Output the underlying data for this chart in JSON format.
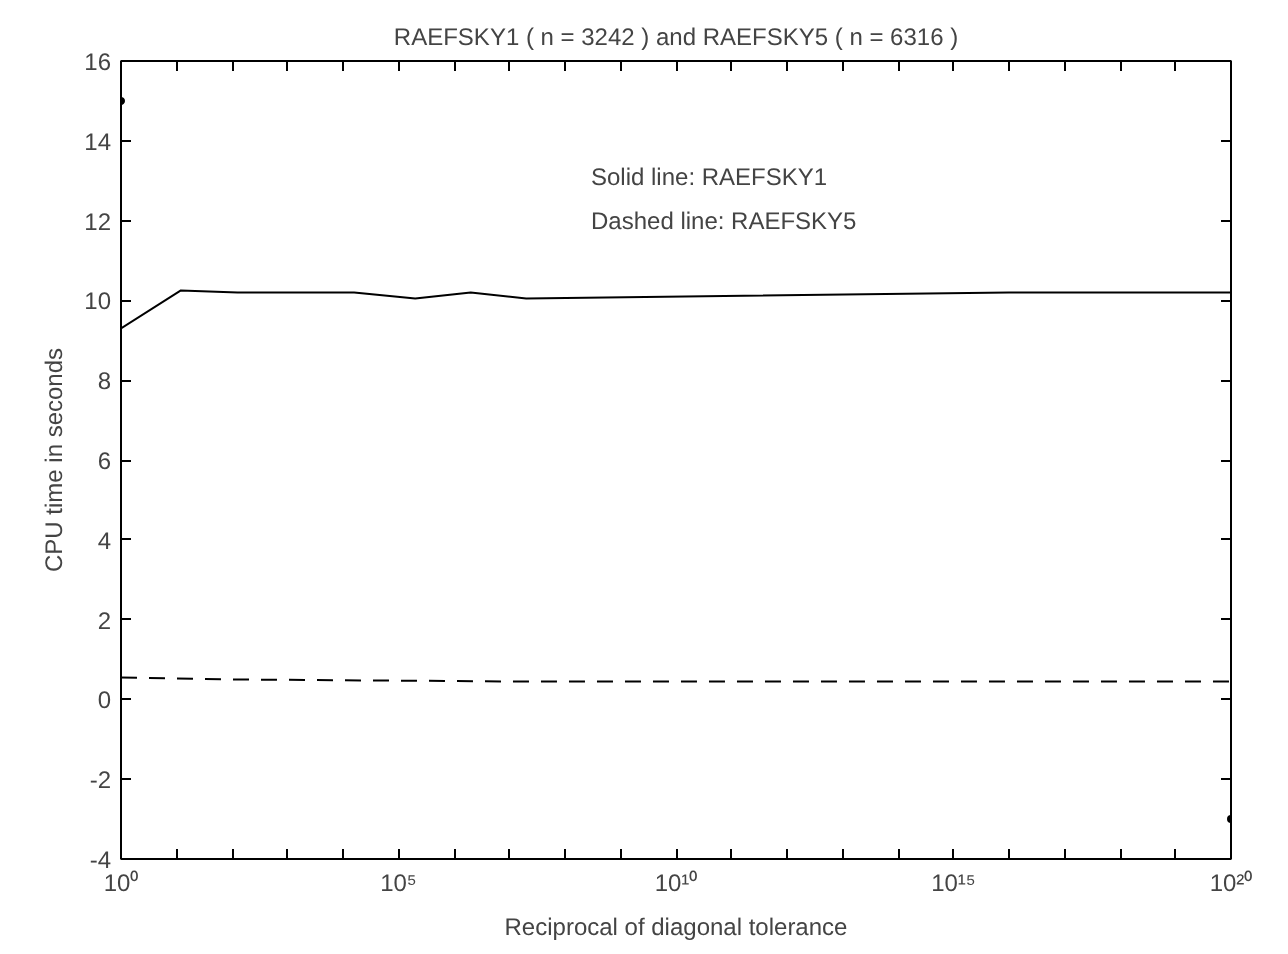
{
  "chart_data": {
    "type": "line",
    "title": "RAEFSKY1 ( n = 3242 ) and RAEFSKY5 ( n = 6316 )",
    "xlabel": "Reciprocal of diagonal tolerance",
    "ylabel": "CPU time in seconds",
    "annotations": [
      "Solid line: RAEFSKY1",
      "Dashed line: RAEFSKY5"
    ],
    "log": "x",
    "grid": false,
    "xlim": [
      1,
      1e+20
    ],
    "ylim": [
      -4,
      16
    ],
    "xticks": [
      {
        "value": 1,
        "label": "10⁰"
      },
      {
        "value": 10.0,
        "label": null
      },
      {
        "value": 100.0,
        "label": null
      },
      {
        "value": 1000.0,
        "label": null
      },
      {
        "value": 10000.0,
        "label": null
      },
      {
        "value": 100000.0,
        "label": "10⁵"
      },
      {
        "value": 1000000.0,
        "label": null
      },
      {
        "value": 10000000.0,
        "label": null
      },
      {
        "value": 100000000.0,
        "label": null
      },
      {
        "value": 1000000000.0,
        "label": null
      },
      {
        "value": 10000000000.0,
        "label": "10¹⁰"
      },
      {
        "value": 100000000000.0,
        "label": null
      },
      {
        "value": 1000000000000.0,
        "label": null
      },
      {
        "value": 10000000000000.0,
        "label": null
      },
      {
        "value": 100000000000000.0,
        "label": null
      },
      {
        "value": 1000000000000000.0,
        "label": "10¹⁵"
      },
      {
        "value": 1e+16,
        "label": null
      },
      {
        "value": 1e+17,
        "label": null
      },
      {
        "value": 1e+18,
        "label": null
      },
      {
        "value": 1e+19,
        "label": null
      },
      {
        "value": 1e+20,
        "label": "10²⁰"
      }
    ],
    "yticks": [
      -4,
      -2,
      0,
      2,
      4,
      6,
      8,
      10,
      12,
      14,
      16
    ],
    "series": [
      {
        "color": "#000000",
        "line_style": "solid",
        "x": [
          1,
          12,
          126,
          15850,
          200000,
          2000000,
          20000000,
          1e+16,
          1e+20
        ],
        "values": [
          9.3,
          10.25,
          10.2,
          10.2,
          10.05,
          10.2,
          10.05,
          10.2,
          10.2
        ]
      },
      {
        "color": "#000000",
        "line_style": "dashed",
        "x": [
          1,
          100,
          10000000.0,
          1e+20
        ],
        "values": [
          0.55,
          0.5,
          0.45,
          0.45
        ]
      },
      {
        "type": "scatter",
        "marker": "circle",
        "color": "#000000",
        "x": [
          1,
          1e+20
        ],
        "values": [
          15,
          -3
        ]
      }
    ]
  }
}
